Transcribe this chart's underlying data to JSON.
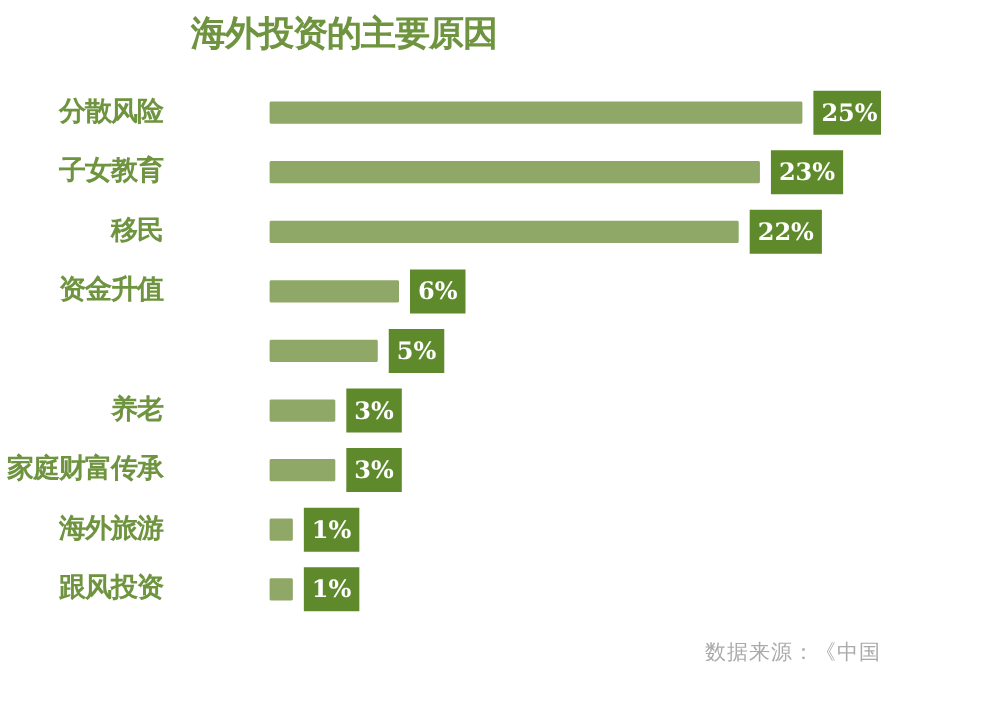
{
  "chart_data": {
    "type": "bar",
    "orientation": "horizontal",
    "title": "海外投资的主要原因",
    "categories": [
      "分散风险",
      "子女教育",
      "移民",
      "资金升值",
      null,
      "养老",
      "家庭财富传承",
      "海外旅游",
      "跟风投资"
    ],
    "values": [
      25,
      23,
      22,
      6,
      5,
      3,
      3,
      1,
      1
    ],
    "color": "#8fa867",
    "value_labels": [
      "25%",
      "23%",
      "22%",
      "6%",
      "5%",
      "3%",
      "3%",
      "1%",
      "1%"
    ],
    "tick_labels": "y",
    "grid": false,
    "annotations": [
      "数据来源：《中国"
    ]
  }
}
